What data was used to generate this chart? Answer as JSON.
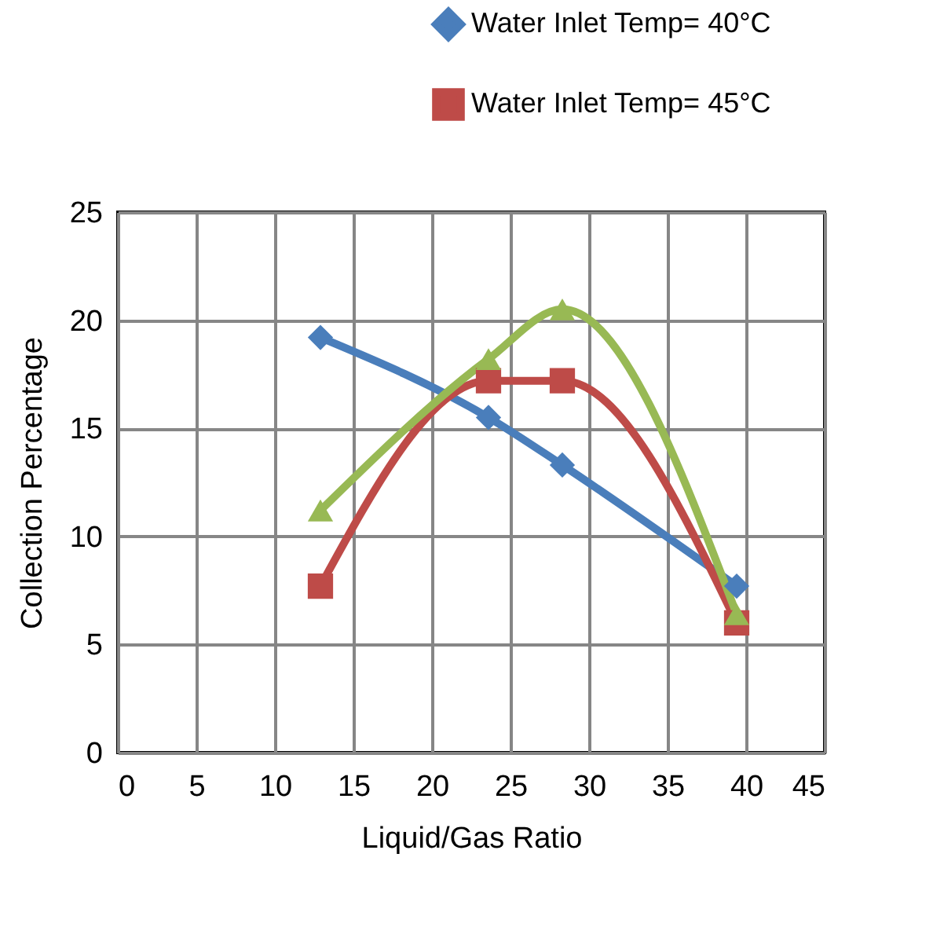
{
  "chart_data": {
    "type": "line",
    "xlabel": "Liquid/Gas Ratio",
    "ylabel": "Collection Percentage",
    "xlim": [
      0,
      45
    ],
    "xticks": [
      0,
      5,
      10,
      15,
      20,
      25,
      30,
      35,
      40,
      45
    ],
    "ylim": [
      0,
      25
    ],
    "yticks": [
      0,
      5,
      10,
      15,
      20,
      25
    ],
    "grid": true,
    "legend": "top right",
    "series": [
      {
        "name": "Water Inlet Temp= 40°C",
        "color": "#4a7ebb",
        "marker": "diamond",
        "x": [
          12.9,
          23.6,
          28.3,
          39.4
        ],
        "values": [
          19.2,
          15.5,
          13.3,
          7.7
        ]
      },
      {
        "name": "Water Inlet Temp= 45°C",
        "color": "#be4b48",
        "marker": "square",
        "x": [
          12.9,
          23.6,
          28.3,
          39.4
        ],
        "values": [
          7.7,
          17.2,
          17.2,
          6.0
        ]
      },
      {
        "color": "#98b954",
        "marker": "triangle",
        "x": [
          12.9,
          23.6,
          28.3,
          39.4
        ],
        "values": [
          11.2,
          18.2,
          20.5,
          6.4
        ]
      }
    ]
  }
}
